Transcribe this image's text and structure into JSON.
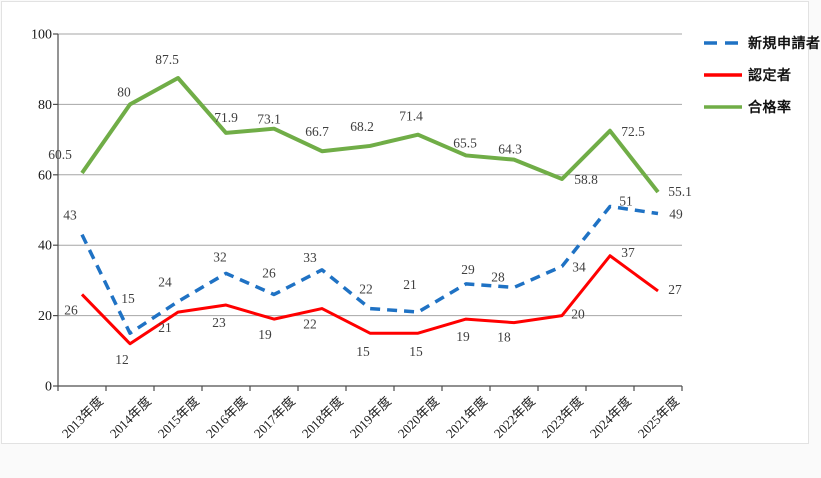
{
  "page": {
    "background": "#fafafa",
    "frame_background": "#ffffff",
    "frame_border": "#e2e2e2"
  },
  "chart_data": {
    "type": "line",
    "title": "",
    "xlabel": "",
    "ylabel": "",
    "categories": [
      "2013年度",
      "2014年度",
      "2015年度",
      "2016年度",
      "2017年度",
      "2018年度",
      "2019年度",
      "2020年度",
      "2021年度",
      "2022年度",
      "2023年度",
      "2024年度",
      "2025年度"
    ],
    "series": [
      {
        "name": "新規申請者",
        "color": "#1f72c4",
        "style": "dashed",
        "stroke_width": 3.5,
        "values": [
          43,
          15,
          24,
          32,
          26,
          33,
          22,
          21,
          29,
          28,
          34,
          51,
          49
        ],
        "label_offsets": [
          [
            -12,
            -15
          ],
          [
            -2,
            -30
          ],
          [
            -13,
            -15
          ],
          [
            -6,
            -12
          ],
          [
            -5,
            -17
          ],
          [
            -12,
            -8
          ],
          [
            -4,
            -15
          ],
          [
            -8,
            -23
          ],
          [
            2,
            -10
          ],
          [
            -16,
            -6
          ],
          [
            17,
            5
          ],
          [
            16,
            -1
          ],
          [
            18,
            5
          ]
        ]
      },
      {
        "name": "認定者",
        "color": "#ff0000",
        "style": "solid",
        "stroke_width": 3,
        "values": [
          26,
          12,
          21,
          23,
          19,
          22,
          15,
          15,
          19,
          18,
          20,
          37,
          27
        ],
        "label_offsets": [
          [
            -11,
            20
          ],
          [
            -8,
            20
          ],
          [
            -13,
            20
          ],
          [
            -7,
            22
          ],
          [
            -9,
            20
          ],
          [
            -12,
            20
          ],
          [
            -7,
            23
          ],
          [
            -2,
            23
          ],
          [
            -3,
            22
          ],
          [
            -10,
            19
          ],
          [
            16,
            3
          ],
          [
            18,
            1
          ],
          [
            17,
            3
          ]
        ]
      },
      {
        "name": "合格率",
        "color": "#70ad47",
        "style": "solid",
        "stroke_width": 4,
        "values": [
          60.5,
          80,
          87.5,
          71.9,
          73.1,
          66.7,
          68.2,
          71.4,
          65.5,
          64.3,
          58.8,
          72.5,
          55.1
        ],
        "label_offsets": [
          [
            -22,
            -14
          ],
          [
            -6,
            -8
          ],
          [
            -11,
            -14
          ],
          [
            0,
            -11
          ],
          [
            -5,
            -5
          ],
          [
            -5,
            -15
          ],
          [
            -8,
            -15
          ],
          [
            -7,
            -14
          ],
          [
            -1,
            -8
          ],
          [
            -4,
            -6
          ],
          [
            24,
            5
          ],
          [
            23,
            5
          ],
          [
            22,
            4
          ]
        ]
      }
    ],
    "ylim": [
      0,
      100
    ],
    "yticks": [
      0,
      20,
      40,
      60,
      80,
      100
    ],
    "grid": true,
    "legend_position": "top-right",
    "axis_color": "#4d4d4d",
    "grid_color": "#a6a6a6",
    "data_label_color": "#3f3f3f",
    "tick_label_color": "#1a1a1a"
  }
}
